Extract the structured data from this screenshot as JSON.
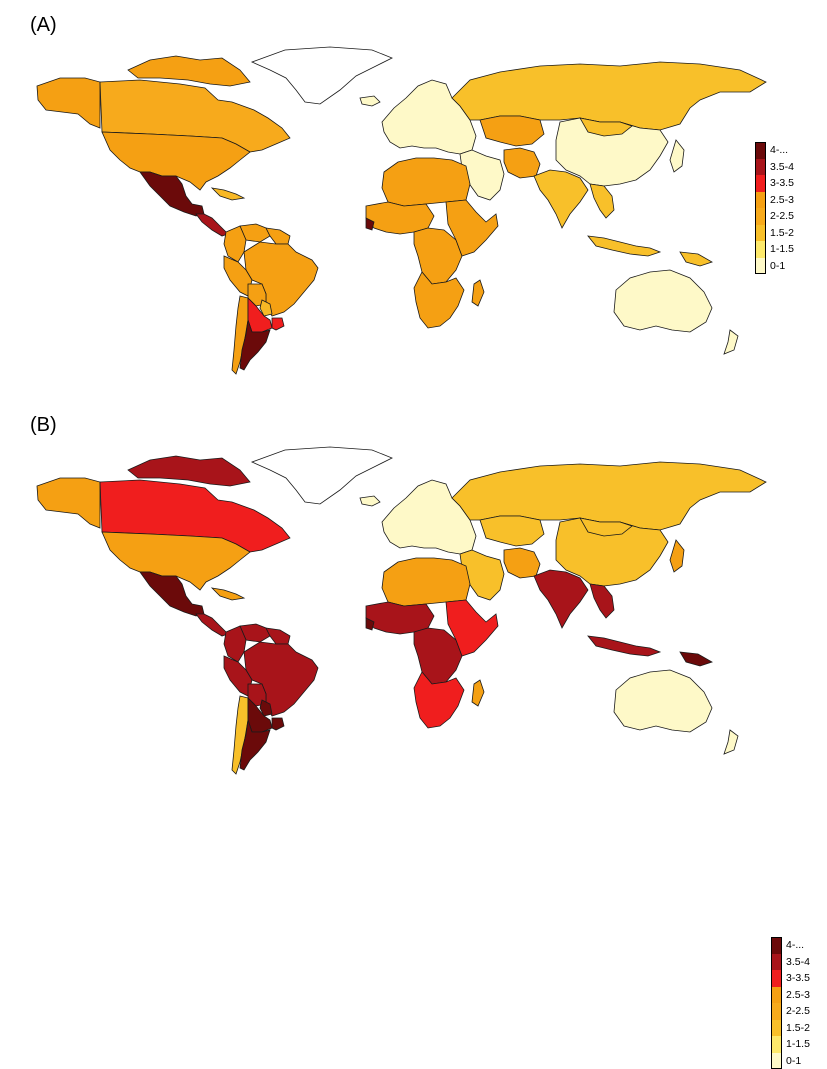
{
  "panels": [
    {
      "label": "(A)",
      "fills": {
        "greenland": "#ffffff",
        "alaska": "#f5a013",
        "canada": "#f7aa1c",
        "canada_arctic": "#f5a013",
        "usa": "#f5a013",
        "mexico": "#6b0a0a",
        "central_america": "#a8141a",
        "caribbean": "#f7b825",
        "venezuela": "#f5a013",
        "colombia": "#f5a013",
        "guyanas": "#f5a013",
        "brazil": "#f5a013",
        "peru": "#f5a013",
        "bolivia": "#f5a013",
        "paraguay": "#f7b825",
        "chile": "#f5a013",
        "argentina_north": "#f01e1e",
        "argentina_south": "#6b0a0a",
        "uruguay": "#f01e1e",
        "iceland": "#fef9c8",
        "europe": "#fef9c8",
        "russia": "#f8c02a",
        "kazakhstan": "#f5a013",
        "middle_east": "#fef9c8",
        "iran": "#f5a013",
        "south_asia": "#f8c02a",
        "china": "#fef9c8",
        "mongolia": "#f8c02a",
        "se_asia": "#f8c02a",
        "indonesia": "#f8c02a",
        "japan": "#fef9c8",
        "north_africa": "#f5a013",
        "west_africa": "#f5a013",
        "sierra_leone": "#6b0a0a",
        "central_africa": "#f5a013",
        "east_africa": "#f5a013",
        "south_africa": "#f5a013",
        "madagascar": "#f5a013",
        "australia": "#fef9c8",
        "new_zealand": "#fef9c8",
        "png": "#f8c02a"
      }
    },
    {
      "label": "(B)",
      "fills": {
        "greenland": "#ffffff",
        "alaska": "#f5a013",
        "canada": "#f01e1e",
        "canada_arctic": "#a8141a",
        "usa": "#f5a013",
        "mexico": "#6b0a0a",
        "central_america": "#a8141a",
        "caribbean": "#f5a013",
        "venezuela": "#a8141a",
        "colombia": "#a8141a",
        "guyanas": "#a8141a",
        "brazil": "#a8141a",
        "peru": "#a8141a",
        "bolivia": "#a8141a",
        "paraguay": "#6b0a0a",
        "chile": "#f8c02a",
        "argentina_north": "#6b0a0a",
        "argentina_south": "#6b0a0a",
        "uruguay": "#6b0a0a",
        "iceland": "#fef9c8",
        "europe": "#fef9c8",
        "russia": "#f8c02a",
        "kazakhstan": "#f8c02a",
        "middle_east": "#f8c02a",
        "iran": "#f5a013",
        "south_asia": "#a8141a",
        "china": "#f8c02a",
        "mongolia": "#f8c02a",
        "se_asia": "#a8141a",
        "indonesia": "#a8141a",
        "japan": "#f5a013",
        "north_africa": "#f5a013",
        "west_africa": "#a8141a",
        "sierra_leone": "#6b0a0a",
        "central_africa": "#a8141a",
        "east_africa": "#f01e1e",
        "south_africa": "#f01e1e",
        "madagascar": "#f5a013",
        "australia": "#fef9c8",
        "new_zealand": "#fef9c8",
        "png": "#6b0a0a"
      }
    }
  ],
  "legend": [
    {
      "label": "4-...",
      "color": "#6b0a0a"
    },
    {
      "label": "3.5-4",
      "color": "#a8141a"
    },
    {
      "label": "3-3.5",
      "color": "#f01e1e"
    },
    {
      "label": "2.5-3",
      "color": "#f5a013"
    },
    {
      "label": "2-2.5",
      "color": "#f7aa1c"
    },
    {
      "label": "1.5-2",
      "color": "#f8c02a"
    },
    {
      "label": "1-1.5",
      "color": "#fde96b"
    },
    {
      "label": "0-1",
      "color": "#fef9c8"
    }
  ]
}
